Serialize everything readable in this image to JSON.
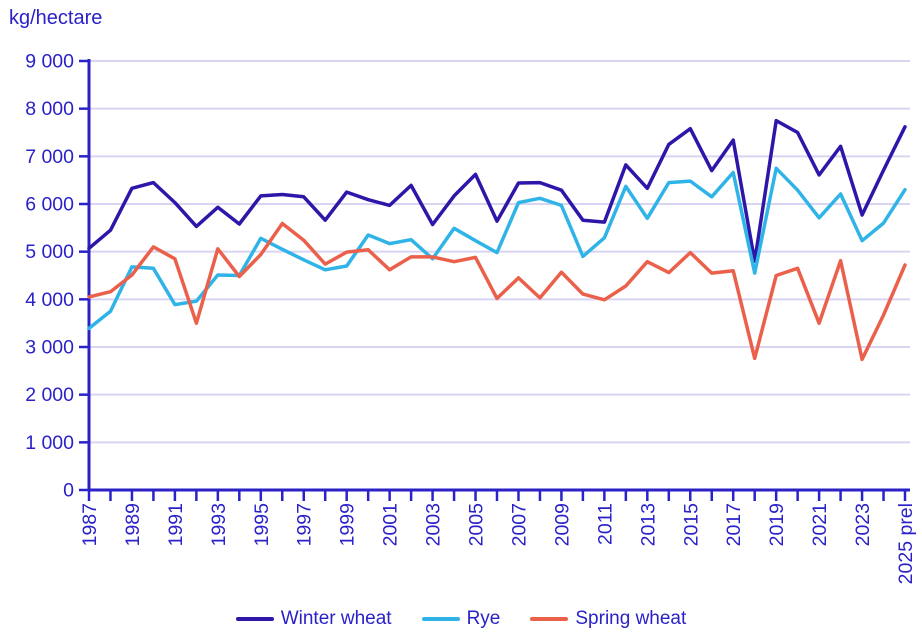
{
  "title": "kg/hectare",
  "chart_data": {
    "type": "line",
    "title": "kg/hectare",
    "xlabel": "",
    "ylabel": "kg/hectare",
    "ylim": [
      0,
      9000
    ],
    "grid": "horizontal",
    "legend_position": "bottom",
    "y_ticks": {
      "values": [
        0,
        1000,
        2000,
        3000,
        4000,
        5000,
        6000,
        7000,
        8000,
        9000
      ],
      "labels": [
        "0",
        "1 000",
        "2 000",
        "3 000",
        "4 000",
        "5 000",
        "6 000",
        "7 000",
        "8 000",
        "9 000"
      ]
    },
    "categories": [
      "1987",
      "1988",
      "1989",
      "1990",
      "1991",
      "1992",
      "1993",
      "1994",
      "1995",
      "1996",
      "1997",
      "1998",
      "1999",
      "2000",
      "2001",
      "2002",
      "2003",
      "2004",
      "2005",
      "2006",
      "2007",
      "2008",
      "2009",
      "2010",
      "2011",
      "2012",
      "2013",
      "2014",
      "2015",
      "2016",
      "2017",
      "2018",
      "2019",
      "2020",
      "2021",
      "2022",
      "2023",
      "2024",
      "2025 prel"
    ],
    "x_label_every": 2,
    "series": [
      {
        "name": "Winter wheat",
        "color": "#2e17a8",
        "values": [
          5070,
          5450,
          6330,
          6450,
          6030,
          5530,
          5930,
          5580,
          6170,
          6200,
          6150,
          5660,
          6250,
          6090,
          5970,
          6390,
          5570,
          6170,
          6620,
          5640,
          6440,
          6450,
          6290,
          5660,
          5620,
          6820,
          6330,
          7250,
          7580,
          6700,
          7340,
          4800,
          7750,
          7500,
          6610,
          7210,
          5770,
          6710,
          7620
        ]
      },
      {
        "name": "Rye",
        "color": "#30b4e8",
        "values": [
          3390,
          3750,
          4680,
          4650,
          3890,
          3960,
          4510,
          4500,
          5280,
          5050,
          4830,
          4620,
          4700,
          5350,
          5170,
          5250,
          4850,
          5490,
          5230,
          4980,
          6030,
          6120,
          5970,
          4900,
          5290,
          6370,
          5700,
          6450,
          6480,
          6150,
          6660,
          4550,
          6750,
          6290,
          5710,
          6210,
          5230,
          5600,
          6300
        ]
      },
      {
        "name": "Spring wheat",
        "color": "#eb604b",
        "values": [
          4050,
          4160,
          4510,
          5100,
          4850,
          3500,
          5060,
          4480,
          4940,
          5590,
          5240,
          4740,
          4990,
          5040,
          4620,
          4890,
          4890,
          4790,
          4880,
          4020,
          4450,
          4030,
          4570,
          4110,
          3990,
          4280,
          4790,
          4560,
          4980,
          4550,
          4600,
          2760,
          4500,
          4650,
          3500,
          4810,
          2740,
          3670,
          4720
        ]
      }
    ],
    "colors": {
      "axis_text": "#2a21c9",
      "axis_line": "#2a21c9",
      "gridline": "#d9d4f2",
      "background": "#ffffff"
    }
  }
}
